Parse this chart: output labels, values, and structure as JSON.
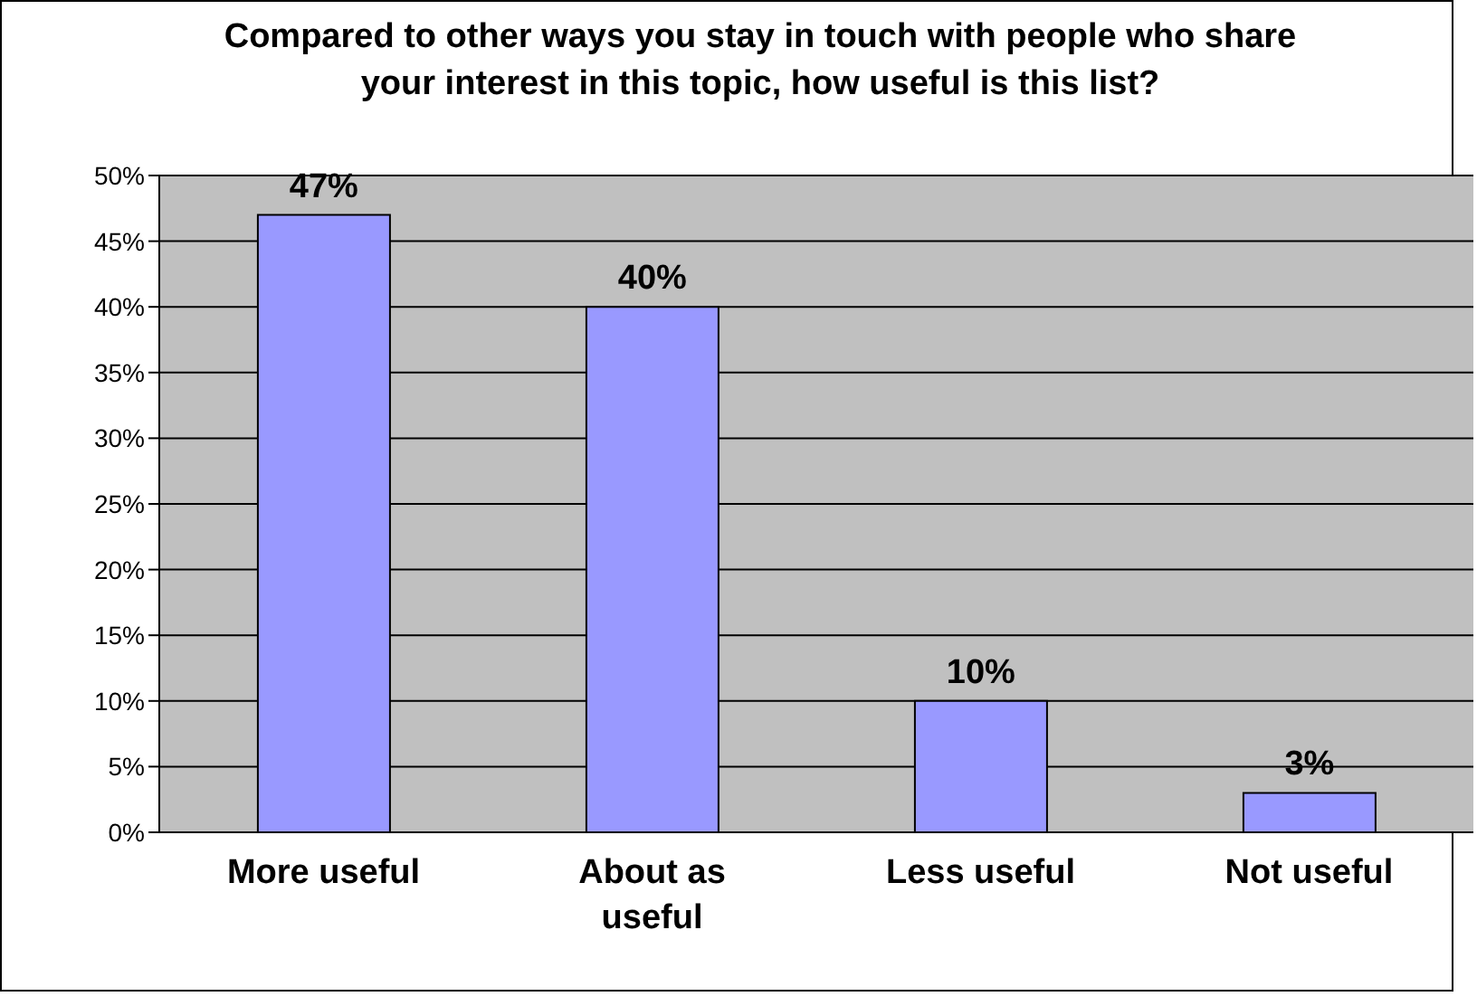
{
  "chart_data": {
    "type": "bar",
    "title": "Compared to other ways you stay in touch with people who share your interest in this topic, how useful is this list?",
    "categories": [
      "More useful",
      "About as useful",
      "Less useful",
      "Not useful"
    ],
    "values": [
      47,
      40,
      10,
      3
    ],
    "value_labels": [
      "47%",
      "40%",
      "10%",
      "3%"
    ],
    "color": "#9999ff",
    "ylim": [
      0,
      50
    ],
    "yticks": [
      {
        "value": 0,
        "label": "0%"
      },
      {
        "value": 5,
        "label": "5%"
      },
      {
        "value": 10,
        "label": "10%"
      },
      {
        "value": 15,
        "label": "15%"
      },
      {
        "value": 20,
        "label": "20%"
      },
      {
        "value": 25,
        "label": "25%"
      },
      {
        "value": 30,
        "label": "30%"
      },
      {
        "value": 35,
        "label": "35%"
      },
      {
        "value": 40,
        "label": "40%"
      },
      {
        "value": 45,
        "label": "45%"
      },
      {
        "value": 50,
        "label": "50%"
      }
    ],
    "grid": "y"
  }
}
